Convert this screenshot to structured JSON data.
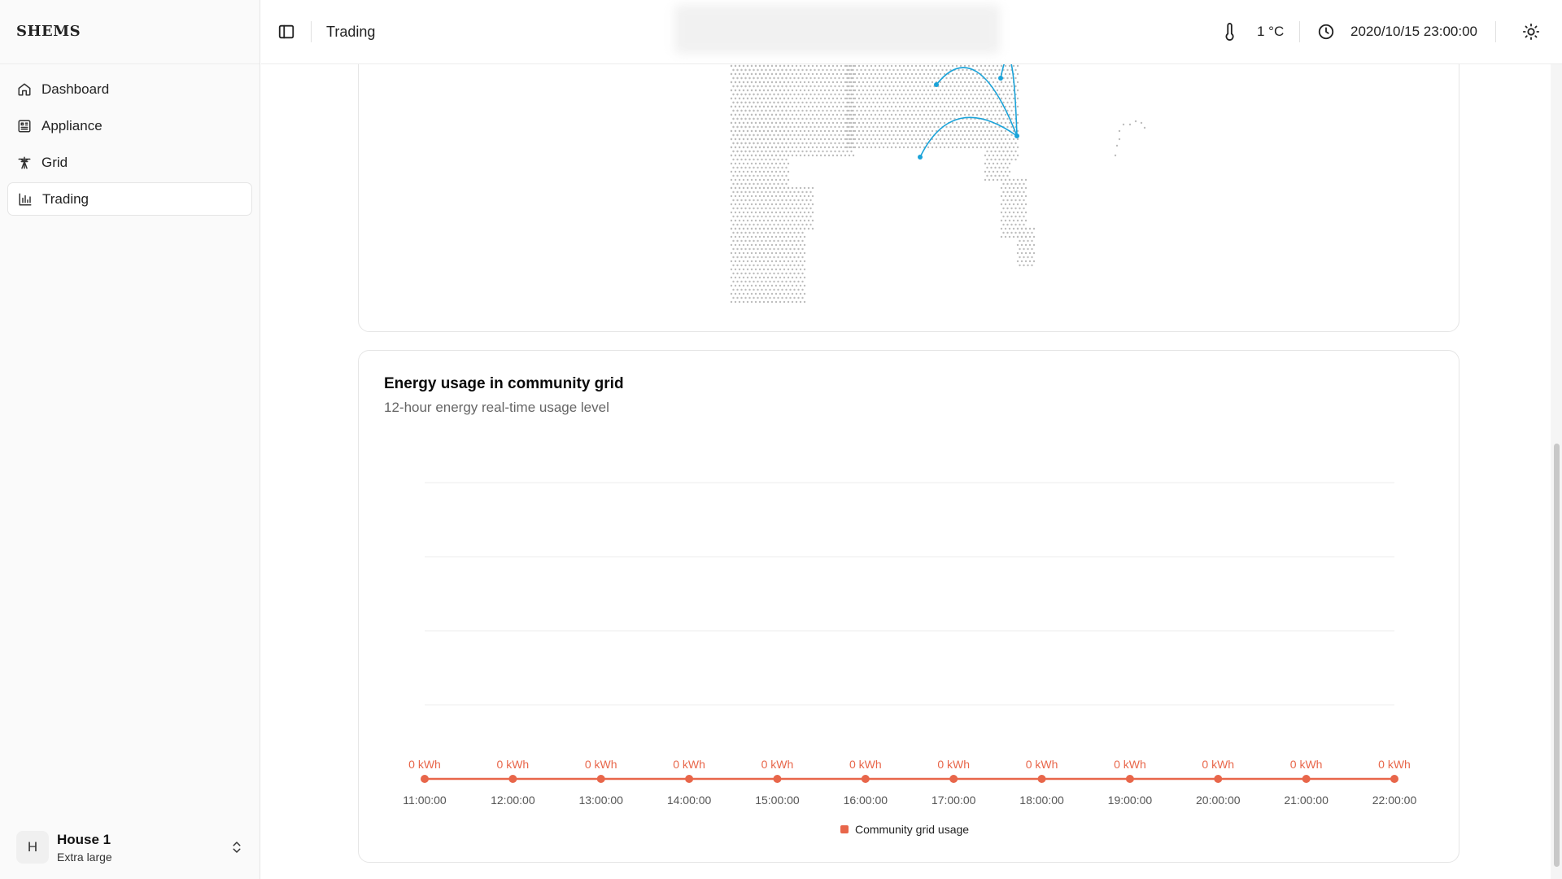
{
  "brand": {
    "name": "SHEMS"
  },
  "sidebar": {
    "items": [
      {
        "label": "Dashboard",
        "icon": "home-icon"
      },
      {
        "label": "Appliance",
        "icon": "appliance-icon"
      },
      {
        "label": "Grid",
        "icon": "transmission-tower-icon"
      },
      {
        "label": "Trading",
        "icon": "chart-bars-icon",
        "active": true
      }
    ],
    "house": {
      "avatar": "H",
      "name": "House 1",
      "size": "Extra large"
    }
  },
  "header": {
    "title": "Trading",
    "temperature": "1 °C",
    "datetime": "2020/10/15 23:00:00"
  },
  "colors": {
    "accent": "#e8664a",
    "map_arc": "#1aa3d9",
    "map_dot": "#bdbdbd"
  },
  "energy_chart": {
    "title": "Energy usage in community grid",
    "subtitle": "12-hour energy real-time usage level",
    "legend_label": "Community grid usage"
  },
  "chart_data": {
    "type": "line",
    "title": "Energy usage in community grid",
    "subtitle": "12-hour energy real-time usage level",
    "categories": [
      "11:00:00",
      "12:00:00",
      "13:00:00",
      "14:00:00",
      "15:00:00",
      "16:00:00",
      "17:00:00",
      "18:00:00",
      "19:00:00",
      "20:00:00",
      "21:00:00",
      "22:00:00"
    ],
    "series": [
      {
        "name": "Community grid usage",
        "values": [
          0,
          0,
          0,
          0,
          0,
          0,
          0,
          0,
          0,
          0,
          0,
          0
        ],
        "labels": [
          "0 kWh",
          "0 kWh",
          "0 kWh",
          "0 kWh",
          "0 kWh",
          "0 kWh",
          "0 kWh",
          "0 kWh",
          "0 kWh",
          "0 kWh",
          "0 kWh",
          "0 kWh"
        ],
        "color": "#e8664a"
      }
    ],
    "xlabel": "",
    "ylabel": "",
    "grid": true,
    "legend": "bottom-center"
  }
}
